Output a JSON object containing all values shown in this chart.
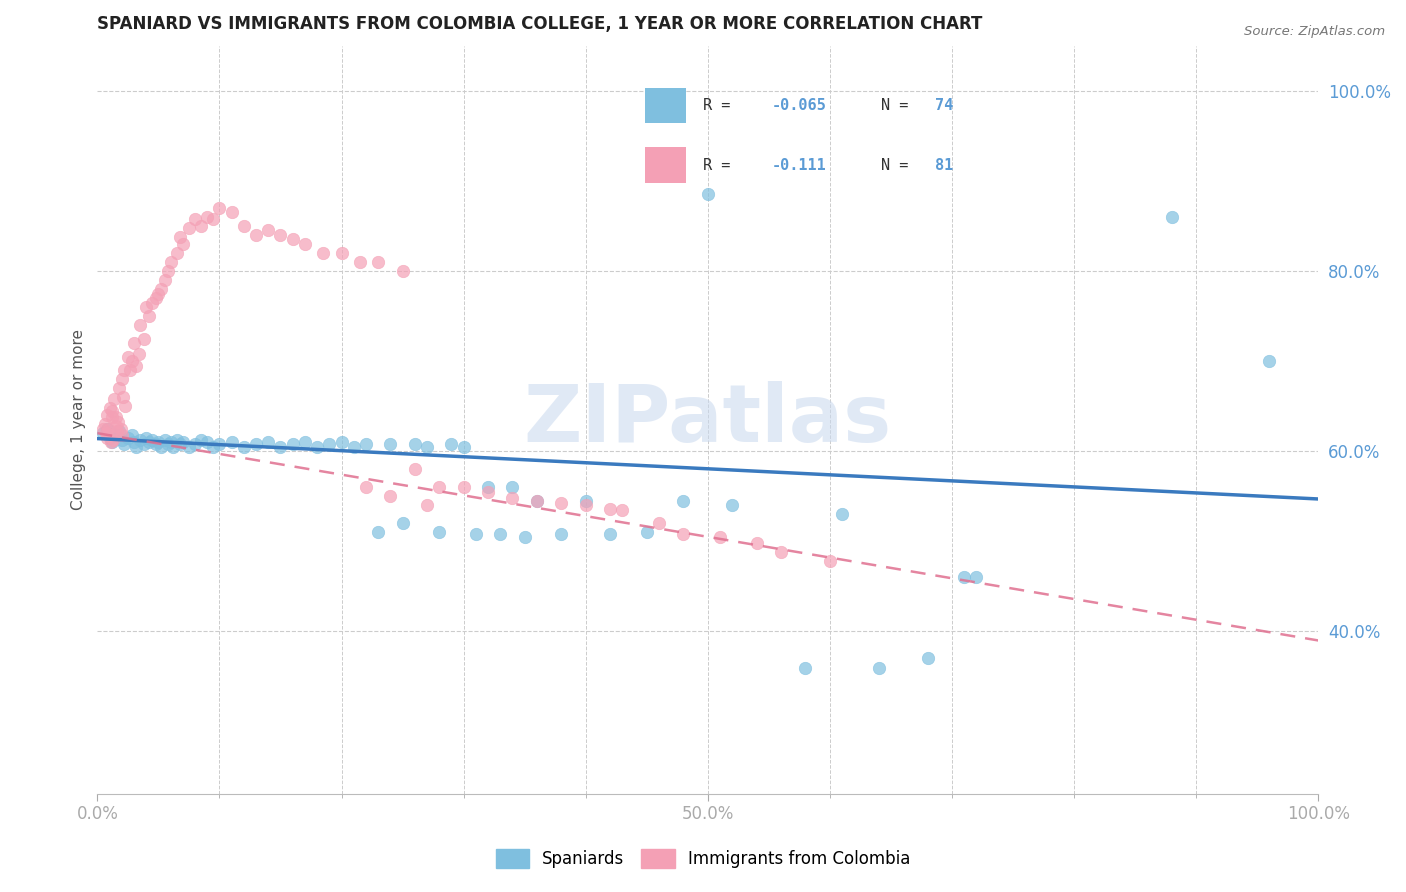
{
  "title": "SPANIARD VS IMMIGRANTS FROM COLOMBIA COLLEGE, 1 YEAR OR MORE CORRELATION CHART",
  "source": "Source: ZipAtlas.com",
  "ylabel": "College, 1 year or more",
  "xlim": [
    0.0,
    1.0
  ],
  "ylim": [
    0.22,
    1.05
  ],
  "y_ticks": [
    0.4,
    0.6,
    0.8,
    1.0
  ],
  "color_blue": "#7fbfdf",
  "color_pink": "#f4a0b5",
  "color_line_blue": "#3a7abf",
  "color_line_pink": "#e07090",
  "watermark": "ZIPatlas",
  "spaniards_x": [
    0.005,
    0.008,
    0.01,
    0.012,
    0.015,
    0.018,
    0.02,
    0.022,
    0.025,
    0.028,
    0.03,
    0.032,
    0.035,
    0.038,
    0.04,
    0.042,
    0.045,
    0.048,
    0.05,
    0.052,
    0.055,
    0.058,
    0.06,
    0.062,
    0.065,
    0.068,
    0.07,
    0.075,
    0.08,
    0.085,
    0.09,
    0.095,
    0.1,
    0.11,
    0.12,
    0.13,
    0.14,
    0.15,
    0.16,
    0.17,
    0.18,
    0.19,
    0.2,
    0.21,
    0.22,
    0.23,
    0.24,
    0.25,
    0.26,
    0.27,
    0.28,
    0.29,
    0.3,
    0.31,
    0.32,
    0.33,
    0.34,
    0.35,
    0.36,
    0.38,
    0.4,
    0.42,
    0.45,
    0.48,
    0.5,
    0.52,
    0.58,
    0.61,
    0.64,
    0.68,
    0.71,
    0.72,
    0.88,
    0.96
  ],
  "spaniards_y": [
    0.62,
    0.625,
    0.615,
    0.61,
    0.618,
    0.622,
    0.612,
    0.608,
    0.615,
    0.618,
    0.61,
    0.605,
    0.612,
    0.608,
    0.615,
    0.61,
    0.612,
    0.608,
    0.61,
    0.605,
    0.612,
    0.608,
    0.61,
    0.605,
    0.612,
    0.608,
    0.61,
    0.605,
    0.608,
    0.612,
    0.61,
    0.605,
    0.608,
    0.61,
    0.605,
    0.608,
    0.61,
    0.605,
    0.608,
    0.61,
    0.605,
    0.608,
    0.61,
    0.605,
    0.608,
    0.51,
    0.608,
    0.52,
    0.608,
    0.605,
    0.51,
    0.608,
    0.605,
    0.508,
    0.56,
    0.508,
    0.56,
    0.505,
    0.545,
    0.508,
    0.545,
    0.508,
    0.51,
    0.545,
    0.885,
    0.54,
    0.36,
    0.53,
    0.36,
    0.37,
    0.46,
    0.46,
    0.86,
    0.7
  ],
  "colombia_x": [
    0.005,
    0.006,
    0.007,
    0.008,
    0.008,
    0.009,
    0.01,
    0.01,
    0.011,
    0.012,
    0.012,
    0.013,
    0.014,
    0.015,
    0.015,
    0.016,
    0.017,
    0.018,
    0.019,
    0.02,
    0.02,
    0.021,
    0.022,
    0.023,
    0.025,
    0.027,
    0.028,
    0.03,
    0.032,
    0.034,
    0.035,
    0.038,
    0.04,
    0.042,
    0.045,
    0.048,
    0.05,
    0.052,
    0.055,
    0.058,
    0.06,
    0.065,
    0.068,
    0.07,
    0.075,
    0.08,
    0.085,
    0.09,
    0.095,
    0.1,
    0.11,
    0.12,
    0.13,
    0.14,
    0.15,
    0.16,
    0.17,
    0.185,
    0.2,
    0.215,
    0.23,
    0.25,
    0.26,
    0.28,
    0.3,
    0.32,
    0.34,
    0.36,
    0.38,
    0.4,
    0.42,
    0.43,
    0.46,
    0.48,
    0.51,
    0.54,
    0.56,
    0.6,
    0.22,
    0.24,
    0.27
  ],
  "colombia_y": [
    0.625,
    0.63,
    0.62,
    0.64,
    0.615,
    0.625,
    0.618,
    0.648,
    0.61,
    0.638,
    0.645,
    0.612,
    0.658,
    0.628,
    0.638,
    0.622,
    0.632,
    0.67,
    0.625,
    0.618,
    0.68,
    0.66,
    0.69,
    0.65,
    0.705,
    0.69,
    0.7,
    0.72,
    0.695,
    0.708,
    0.74,
    0.725,
    0.76,
    0.75,
    0.765,
    0.77,
    0.775,
    0.78,
    0.79,
    0.8,
    0.81,
    0.82,
    0.838,
    0.83,
    0.848,
    0.858,
    0.85,
    0.86,
    0.858,
    0.87,
    0.865,
    0.85,
    0.84,
    0.845,
    0.84,
    0.835,
    0.83,
    0.82,
    0.82,
    0.81,
    0.81,
    0.8,
    0.58,
    0.56,
    0.56,
    0.555,
    0.548,
    0.545,
    0.542,
    0.54,
    0.536,
    0.535,
    0.52,
    0.508,
    0.505,
    0.498,
    0.488,
    0.478,
    0.56,
    0.55,
    0.54
  ],
  "line_blue_x0": 0.0,
  "line_blue_x1": 1.0,
  "line_blue_y0": 0.614,
  "line_blue_y1": 0.547,
  "line_pink_x0": 0.0,
  "line_pink_x1": 1.0,
  "line_pink_y0": 0.62,
  "line_pink_y1": 0.39
}
